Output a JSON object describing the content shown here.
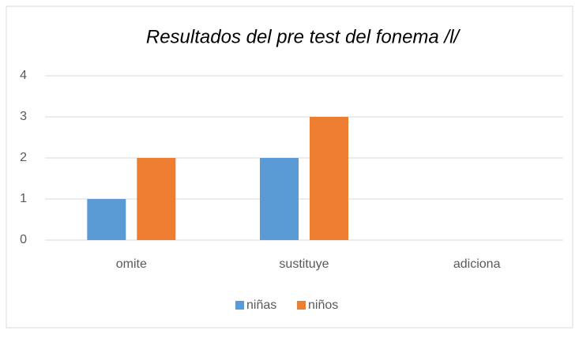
{
  "chart_data": {
    "type": "bar",
    "title": "Resultados del pre test del fonema /l/",
    "categories": [
      "omite",
      "sustituye",
      "adiciona"
    ],
    "series": [
      {
        "name": "niñas",
        "color": "#5b9bd5",
        "values": [
          1,
          2,
          0
        ]
      },
      {
        "name": "niños",
        "color": "#ed7d31",
        "values": [
          2,
          3,
          0
        ]
      }
    ],
    "ylim": [
      0,
      4
    ],
    "yticks": [
      0,
      1,
      2,
      3,
      4
    ],
    "grid": true,
    "legend": "bottom"
  }
}
